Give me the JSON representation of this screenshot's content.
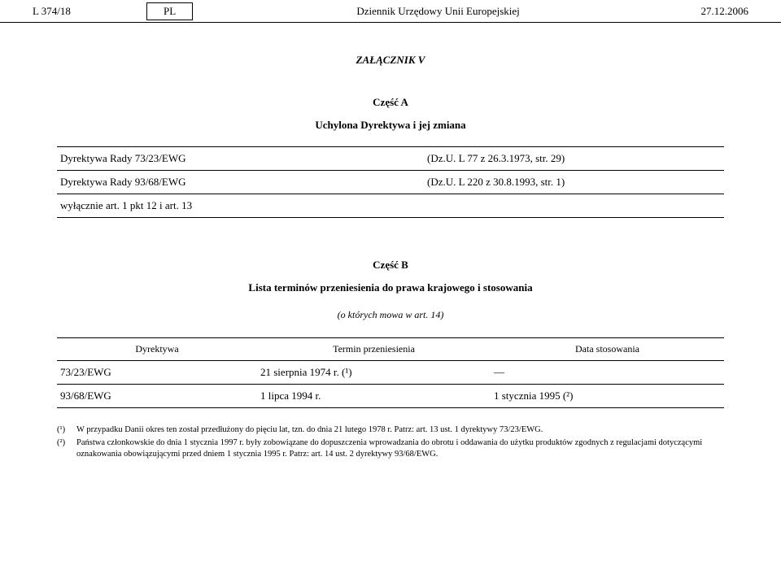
{
  "header": {
    "page_ref": "L 374/18",
    "lang": "PL",
    "journal_title": "Dziennik Urzędowy Unii Europejskiej",
    "date": "27.12.2006"
  },
  "annex": {
    "title": "ZAŁĄCZNIK V"
  },
  "partA": {
    "title": "Część A",
    "subtitle": "Uchylona Dyrektywa i jej zmiana",
    "rows": [
      {
        "left": "Dyrektywa Rady 73/23/EWG",
        "right": "(Dz.U. L 77 z 26.3.1973, str. 29)"
      },
      {
        "left": "Dyrektywa Rady 93/68/EWG",
        "right": "(Dz.U. L 220 z 30.8.1993, str. 1)"
      },
      {
        "left": "wyłącznie art. 1 pkt 12 i art. 13",
        "right": ""
      }
    ]
  },
  "partB": {
    "title": "Część B",
    "subtitle": "Lista terminów przeniesienia do prawa krajowego i stosowania",
    "subtitle2": "(o których mowa w art. 14)",
    "columns": [
      "Dyrektywa",
      "Termin przeniesienia",
      "Data stosowania"
    ],
    "rows": [
      {
        "directive": "73/23/EWG",
        "transposition": "21 sierpnia 1974 r. (¹)",
        "application": "—"
      },
      {
        "directive": "93/68/EWG",
        "transposition": "1 lipca 1994 r.",
        "application": "1 stycznia 1995 (²)"
      }
    ]
  },
  "footnotes": [
    {
      "marker": "(¹)",
      "text": "W przypadku Danii okres ten został przedłużony do pięciu lat, tzn. do dnia 21 lutego 1978 r. Patrz: art. 13 ust. 1 dyrektywy 73/23/EWG."
    },
    {
      "marker": "(²)",
      "text": "Państwa członkowskie do dnia 1 stycznia 1997 r. były zobowiązane do dopuszczenia wprowadzania do obrotu i oddawania do użytku produktów zgodnych z regulacjami dotyczącymi oznakowania obowiązującymi przed dniem 1 stycznia 1995 r. Patrz: art. 14 ust. 2 dyrektywy 93/68/EWG."
    }
  ]
}
